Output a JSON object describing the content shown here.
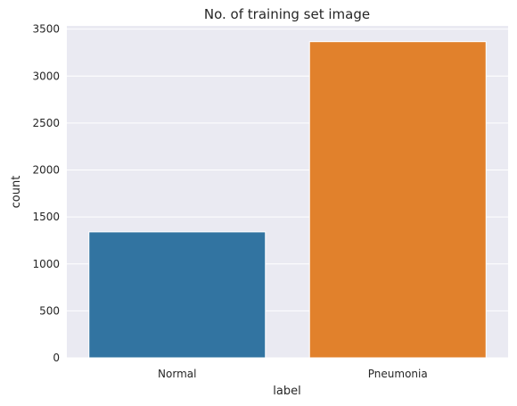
{
  "chart_data": {
    "type": "bar",
    "title": "No. of training set image",
    "xlabel": "label",
    "ylabel": "count",
    "categories": [
      "Normal",
      "Pneumonia"
    ],
    "values": [
      1341,
      3367
    ],
    "ylim": [
      0,
      3535
    ],
    "yticks": [
      0,
      500,
      1000,
      1500,
      2000,
      2500,
      3000,
      3500
    ],
    "grid": true,
    "colors": [
      "#3274a1",
      "#e1812c"
    ],
    "background": "#eaeaf2"
  }
}
